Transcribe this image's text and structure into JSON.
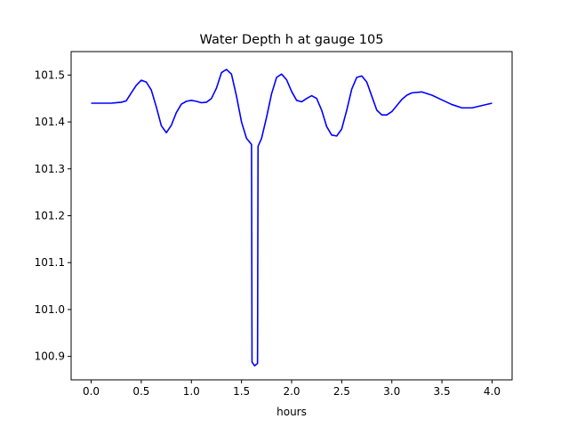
{
  "chart_data": {
    "type": "line",
    "title": "Water Depth h at gauge 105",
    "xlabel": "hours",
    "ylabel": "",
    "xlim": [
      -0.2,
      4.2
    ],
    "ylim": [
      100.85,
      101.55
    ],
    "x_ticks": [
      0.0,
      0.5,
      1.0,
      1.5,
      2.0,
      2.5,
      3.0,
      3.5,
      4.0
    ],
    "x_tick_labels": [
      "0.0",
      "0.5",
      "1.0",
      "1.5",
      "2.0",
      "2.5",
      "3.0",
      "3.5",
      "4.0"
    ],
    "y_ticks": [
      100.9,
      101.0,
      101.1,
      101.2,
      101.3,
      101.4,
      101.5
    ],
    "y_tick_labels": [
      "100.9",
      "101.0",
      "101.1",
      "101.2",
      "101.3",
      "101.4",
      "101.5"
    ],
    "grid": false,
    "series": [
      {
        "color": "#0000ff",
        "x": [
          0.0,
          0.1,
          0.2,
          0.3,
          0.35,
          0.4,
          0.45,
          0.5,
          0.55,
          0.6,
          0.65,
          0.7,
          0.75,
          0.8,
          0.85,
          0.9,
          0.95,
          1.0,
          1.05,
          1.1,
          1.15,
          1.2,
          1.25,
          1.3,
          1.35,
          1.4,
          1.45,
          1.5,
          1.55,
          1.6,
          1.605,
          1.63,
          1.66,
          1.665,
          1.7,
          1.75,
          1.8,
          1.85,
          1.9,
          1.95,
          2.0,
          2.05,
          2.1,
          2.15,
          2.2,
          2.25,
          2.3,
          2.35,
          2.4,
          2.45,
          2.5,
          2.55,
          2.6,
          2.65,
          2.7,
          2.75,
          2.8,
          2.85,
          2.9,
          2.95,
          3.0,
          3.05,
          3.1,
          3.15,
          3.2,
          3.3,
          3.4,
          3.5,
          3.6,
          3.7,
          3.8,
          3.9,
          4.0
        ],
        "y": [
          101.44,
          101.44,
          101.44,
          101.442,
          101.445,
          101.462,
          101.478,
          101.489,
          101.485,
          101.468,
          101.432,
          101.392,
          101.377,
          101.393,
          101.42,
          101.438,
          101.444,
          101.446,
          101.444,
          101.441,
          101.442,
          101.45,
          101.472,
          101.505,
          101.512,
          101.502,
          101.455,
          101.4,
          101.365,
          101.352,
          100.888,
          100.88,
          100.885,
          101.348,
          101.365,
          101.41,
          101.46,
          101.495,
          101.502,
          101.49,
          101.465,
          101.446,
          101.443,
          101.45,
          101.456,
          101.45,
          101.425,
          101.39,
          101.372,
          101.37,
          101.385,
          101.425,
          101.47,
          101.495,
          101.498,
          101.485,
          101.455,
          101.425,
          101.415,
          101.415,
          101.422,
          101.435,
          101.448,
          101.457,
          101.462,
          101.464,
          101.457,
          101.447,
          101.437,
          101.43,
          101.43,
          101.435,
          101.44
        ]
      }
    ]
  }
}
